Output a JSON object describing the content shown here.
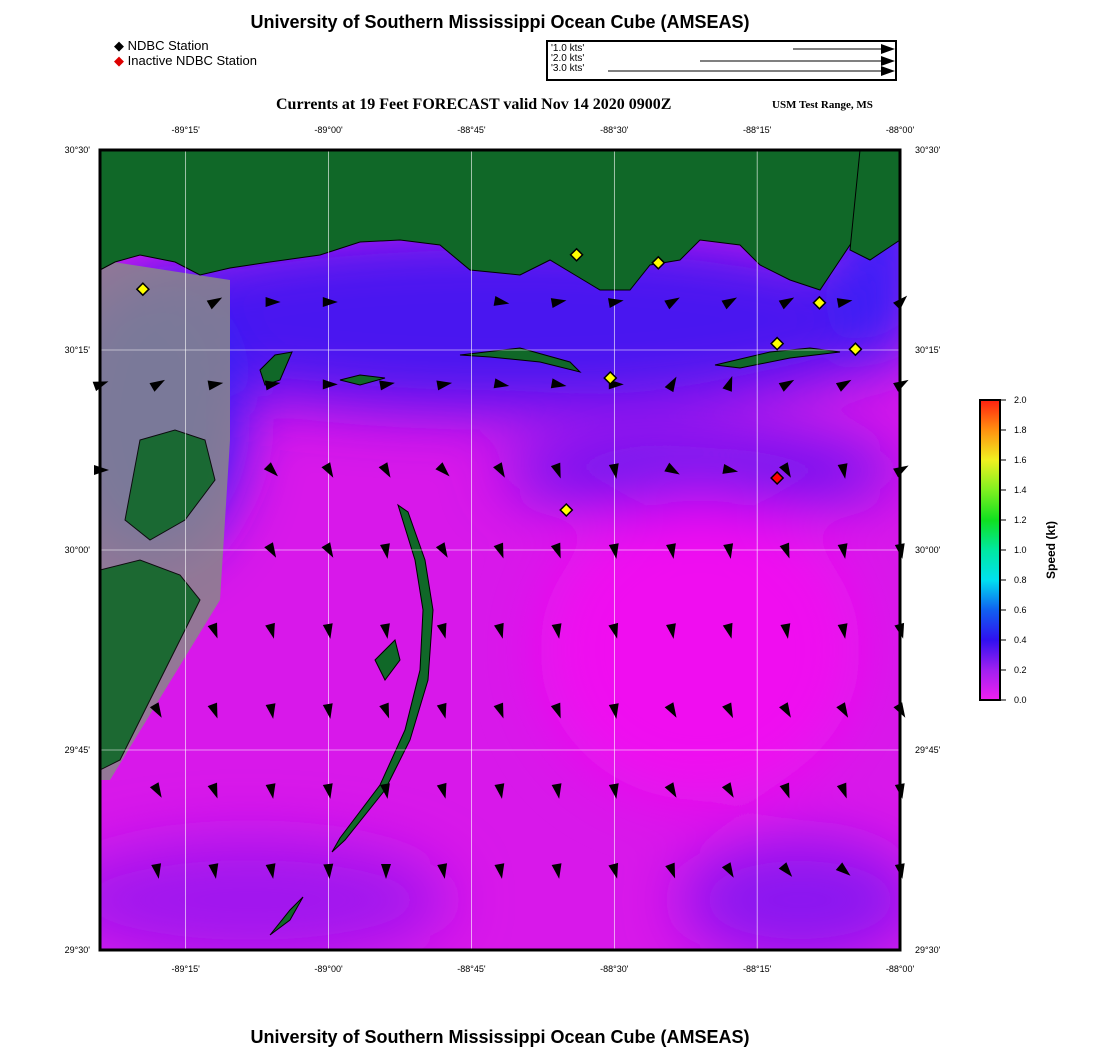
{
  "title": "University of Southern Mississippi Ocean Cube (AMSEAS)",
  "footer_title": "University of Southern Mississippi Ocean Cube (AMSEAS)",
  "legend": {
    "active": "NDBC Station",
    "inactive": "Inactive NDBC Station",
    "active_color": "#ffff00",
    "inactive_color": "#ff0000"
  },
  "vector_scale": [
    {
      "label": "'1.0 kts'",
      "kts": 1.0
    },
    {
      "label": "'2.0 kts'",
      "kts": 2.0
    },
    {
      "label": "'3.0 kts'",
      "kts": 3.0
    }
  ],
  "subtitle": "Currents at 19 Feet FORECAST valid Nov 14 2020 0900Z",
  "location": "USM Test Range, MS",
  "map": {
    "lon_range": [
      -89.4,
      -88.0
    ],
    "lat_range": [
      29.5,
      30.5
    ],
    "lon_ticks": [
      {
        "v": -89.25,
        "l": "-89°15'"
      },
      {
        "v": -89.0,
        "l": "-89°00'"
      },
      {
        "v": -88.75,
        "l": "-88°45'"
      },
      {
        "v": -88.5,
        "l": "-88°30'"
      },
      {
        "v": -88.25,
        "l": "-88°15'"
      },
      {
        "v": -88.0,
        "l": "-88°00'"
      }
    ],
    "lat_ticks": [
      {
        "v": 30.5,
        "l": "30°30'"
      },
      {
        "v": 30.25,
        "l": "30°15'"
      },
      {
        "v": 30.0,
        "l": "30°00'"
      },
      {
        "v": 29.75,
        "l": "29°45'"
      },
      {
        "v": 29.5,
        "l": "29°30'"
      }
    ],
    "stations": [
      {
        "lon": -89.325,
        "lat": 30.326,
        "active": true
      },
      {
        "lon": -88.566,
        "lat": 30.369,
        "active": true
      },
      {
        "lon": -88.423,
        "lat": 30.359,
        "active": true
      },
      {
        "lon": -88.141,
        "lat": 30.309,
        "active": true
      },
      {
        "lon": -88.215,
        "lat": 30.258,
        "active": true
      },
      {
        "lon": -88.078,
        "lat": 30.251,
        "active": true
      },
      {
        "lon": -88.507,
        "lat": 30.215,
        "active": true
      },
      {
        "lon": -88.584,
        "lat": 30.05,
        "active": true
      },
      {
        "lon": -88.215,
        "lat": 30.09,
        "active": false
      }
    ],
    "current_rows": [
      {
        "lat": 30.31,
        "dirs": [
          null,
          null,
          60,
          90,
          90,
          null,
          null,
          100,
          80,
          80,
          60,
          60,
          60,
          80,
          45
        ]
      },
      {
        "lat": 30.207,
        "dirs": [
          70,
          60,
          80,
          80,
          90,
          80,
          80,
          100,
          100,
          90,
          30,
          20,
          60,
          60,
          60
        ]
      },
      {
        "lat": 30.1,
        "dirs": [
          90,
          null,
          null,
          135,
          150,
          150,
          135,
          150,
          160,
          170,
          120,
          100,
          150,
          170,
          60
        ]
      },
      {
        "lat": 30.0,
        "dirs": [
          null,
          null,
          null,
          150,
          150,
          170,
          150,
          160,
          160,
          170,
          170,
          170,
          160,
          170,
          170
        ]
      },
      {
        "lat": 29.9,
        "dirs": [
          null,
          null,
          160,
          165,
          170,
          170,
          165,
          165,
          170,
          165,
          170,
          165,
          170,
          170,
          165
        ]
      },
      {
        "lat": 29.8,
        "dirs": [
          null,
          150,
          160,
          170,
          170,
          160,
          165,
          160,
          160,
          170,
          150,
          155,
          150,
          150,
          150
        ]
      },
      {
        "lat": 29.7,
        "dirs": [
          null,
          150,
          160,
          170,
          170,
          170,
          165,
          170,
          170,
          170,
          150,
          150,
          160,
          160,
          170
        ]
      },
      {
        "lat": 29.6,
        "dirs": [
          null,
          170,
          170,
          170,
          175,
          180,
          170,
          170,
          170,
          165,
          160,
          150,
          140,
          130,
          170
        ]
      }
    ]
  },
  "colorbar": {
    "label": "Speed (kt)",
    "min": 0.0,
    "max": 2.0,
    "ticks": [
      "0.0",
      "0.2",
      "0.4",
      "0.6",
      "0.8",
      "1.0",
      "1.2",
      "1.4",
      "1.6",
      "1.8",
      "2.0"
    ]
  }
}
